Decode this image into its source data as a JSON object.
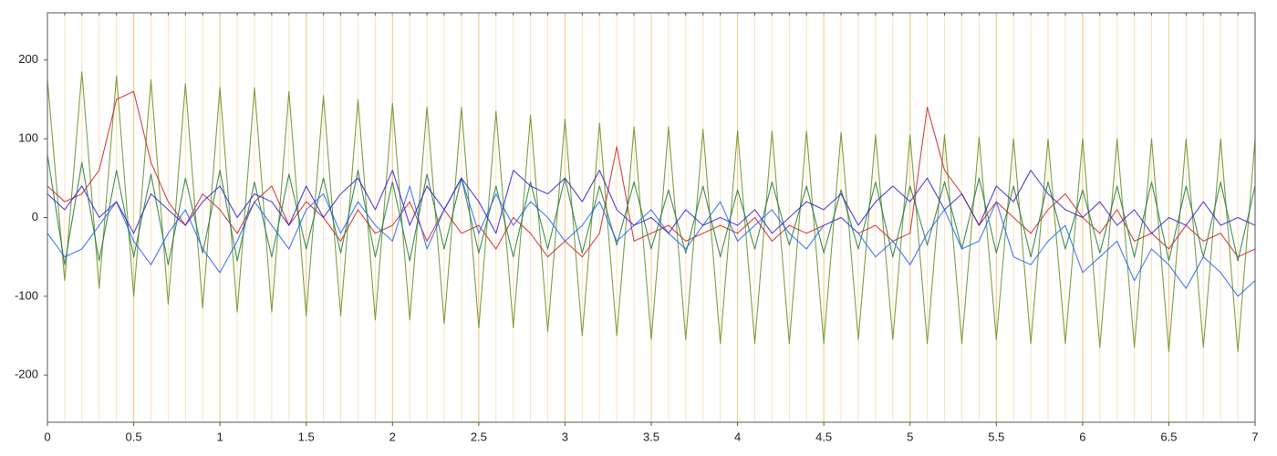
{
  "chart_data": {
    "type": "line",
    "x": [
      0,
      0.1,
      0.2,
      0.3,
      0.4,
      0.5,
      0.6,
      0.7,
      0.8,
      0.9,
      1,
      1.1,
      1.2,
      1.3,
      1.4,
      1.5,
      1.6,
      1.7,
      1.8,
      1.9,
      2,
      2.1,
      2.2,
      2.3,
      2.4,
      2.5,
      2.6,
      2.7,
      2.8,
      2.9,
      3,
      3.1,
      3.2,
      3.3,
      3.4,
      3.5,
      3.6,
      3.7,
      3.8,
      3.9,
      4,
      4.1,
      4.2,
      4.3,
      4.4,
      4.5,
      4.6,
      4.7,
      4.8,
      4.9,
      5,
      5.1,
      5.2,
      5.3,
      5.4,
      5.5,
      5.6,
      5.7,
      5.8,
      5.9,
      6,
      6.1,
      6.2,
      6.3,
      6.4,
      6.5,
      6.6,
      6.7,
      6.8,
      6.9,
      7
    ],
    "series": [
      {
        "color": "#6b8e23",
        "values": [
          175,
          -80,
          185,
          -90,
          180,
          -100,
          175,
          -110,
          170,
          -115,
          165,
          -120,
          165,
          -120,
          160,
          -125,
          155,
          -125,
          150,
          -130,
          145,
          -130,
          140,
          -135,
          140,
          -140,
          135,
          -140,
          130,
          -145,
          125,
          -150,
          120,
          -150,
          115,
          -155,
          115,
          -155,
          112,
          -160,
          110,
          -160,
          110,
          -160,
          110,
          -160,
          108,
          -155,
          105,
          -155,
          105,
          -160,
          105,
          -160,
          102,
          -155,
          100,
          -160,
          100,
          -160,
          100,
          -165,
          100,
          -165,
          100,
          -170,
          100,
          -165,
          100,
          -170,
          100
        ]
      },
      {
        "color": "#d42020",
        "values": [
          40,
          20,
          30,
          60,
          150,
          160,
          70,
          20,
          -10,
          30,
          10,
          -20,
          20,
          40,
          -10,
          20,
          0,
          -30,
          10,
          -20,
          -10,
          20,
          -30,
          10,
          -20,
          -10,
          -40,
          0,
          -20,
          -50,
          -30,
          -50,
          -20,
          90,
          -30,
          -20,
          -10,
          -30,
          -20,
          -10,
          -20,
          0,
          -30,
          -10,
          -20,
          -10,
          0,
          -20,
          -10,
          -30,
          -20,
          140,
          60,
          30,
          -10,
          20,
          0,
          -20,
          10,
          30,
          0,
          -20,
          10,
          -30,
          -20,
          -40,
          -10,
          -30,
          -20,
          -50,
          -40
        ]
      },
      {
        "color": "#1f7a3a",
        "values": [
          80,
          -60,
          70,
          -55,
          60,
          -50,
          55,
          -60,
          50,
          -45,
          60,
          -55,
          45,
          -50,
          55,
          -40,
          50,
          -45,
          60,
          -50,
          45,
          -55,
          55,
          -40,
          50,
          -45,
          40,
          -50,
          45,
          -40,
          50,
          -45,
          40,
          -35,
          45,
          -40,
          35,
          -45,
          40,
          -50,
          35,
          -40,
          45,
          -35,
          40,
          -45,
          35,
          -40,
          45,
          -50,
          40,
          -35,
          45,
          -40,
          50,
          -45,
          40,
          -50,
          45,
          -40,
          35,
          -45,
          40,
          -50,
          45,
          -55,
          40,
          -50,
          45,
          -55,
          40
        ]
      },
      {
        "color": "#1e64ff",
        "values": [
          -20,
          -50,
          -40,
          -10,
          20,
          -30,
          -60,
          -20,
          10,
          -40,
          -70,
          -30,
          20,
          -10,
          -40,
          10,
          30,
          -20,
          20,
          -10,
          -30,
          40,
          -40,
          10,
          50,
          -20,
          30,
          -10,
          20,
          0,
          -30,
          -10,
          20,
          -30,
          -10,
          10,
          -20,
          -40,
          -10,
          20,
          -30,
          -10,
          10,
          -20,
          -40,
          -10,
          0,
          -20,
          -50,
          -30,
          -60,
          -20,
          10,
          -40,
          -30,
          20,
          -50,
          -60,
          -30,
          -10,
          -70,
          -50,
          -30,
          -80,
          -40,
          -60,
          -90,
          -50,
          -70,
          -100,
          -80
        ]
      },
      {
        "color": "#3a1fd0",
        "values": [
          30,
          10,
          40,
          0,
          20,
          -20,
          30,
          10,
          -10,
          20,
          40,
          0,
          30,
          20,
          -10,
          40,
          0,
          30,
          50,
          10,
          60,
          -10,
          40,
          10,
          50,
          20,
          -20,
          60,
          40,
          30,
          50,
          20,
          60,
          10,
          -10,
          0,
          -20,
          10,
          -10,
          0,
          -10,
          10,
          -20,
          0,
          20,
          10,
          30,
          -10,
          20,
          40,
          20,
          50,
          10,
          30,
          -10,
          40,
          20,
          60,
          30,
          10,
          0,
          20,
          -10,
          10,
          -20,
          0,
          -10,
          20,
          -10,
          0,
          -10
        ]
      }
    ],
    "xlim": [
      0,
      7
    ],
    "ylim": [
      -260,
      260
    ],
    "xticks": [
      0,
      0.5,
      1,
      1.5,
      2,
      2.5,
      3,
      3.5,
      4,
      4.5,
      5,
      5.5,
      6,
      6.5,
      7
    ],
    "xminorticks": [
      0,
      0.1,
      0.2,
      0.3,
      0.4,
      0.5,
      0.6,
      0.7,
      0.8,
      0.9,
      1,
      1.1,
      1.2,
      1.3,
      1.4,
      1.5,
      1.6,
      1.7,
      1.8,
      1.9,
      2,
      2.1,
      2.2,
      2.3,
      2.4,
      2.5,
      2.6,
      2.7,
      2.8,
      2.9,
      3,
      3.1,
      3.2,
      3.3,
      3.4,
      3.5,
      3.6,
      3.7,
      3.8,
      3.9,
      4,
      4.1,
      4.2,
      4.3,
      4.4,
      4.5,
      4.6,
      4.7,
      4.8,
      4.9,
      5,
      5.1,
      5.2,
      5.3,
      5.4,
      5.5,
      5.6,
      5.7,
      5.8,
      5.9,
      6,
      6.1,
      6.2,
      6.3,
      6.4,
      6.5,
      6.6,
      6.7,
      6.8,
      6.9,
      7
    ],
    "yticks": [
      -200,
      -100,
      0,
      100,
      200
    ],
    "grid": true
  }
}
